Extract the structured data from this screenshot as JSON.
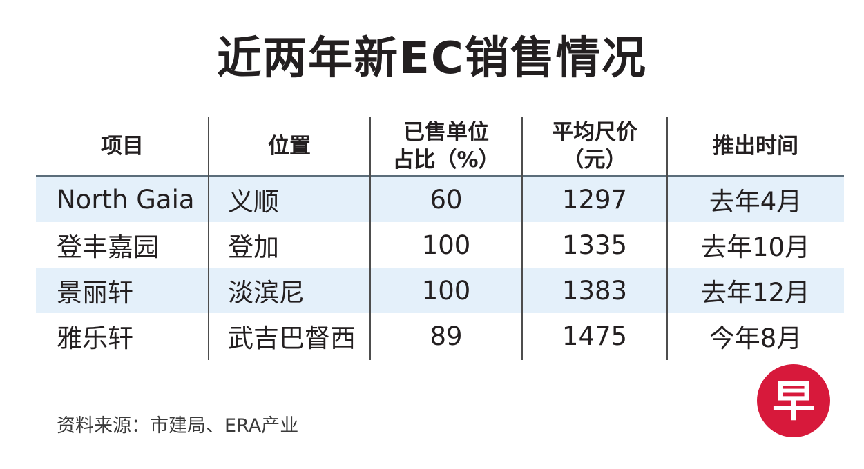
{
  "title": "近两年新EC销售情况",
  "chart_data": {
    "type": "table",
    "columns": [
      {
        "key": "project",
        "lines": [
          "项目"
        ]
      },
      {
        "key": "location",
        "lines": [
          "位置"
        ]
      },
      {
        "key": "sold_pct",
        "lines": [
          "已售单位",
          "占比（%）"
        ]
      },
      {
        "key": "avg_psf",
        "lines": [
          "平均尺价",
          "（元）"
        ]
      },
      {
        "key": "launch",
        "lines": [
          "推出时间"
        ]
      }
    ],
    "rows": [
      {
        "project": "North Gaia",
        "location": "义顺",
        "sold_pct": "60",
        "avg_psf": "1297",
        "launch": "去年4月"
      },
      {
        "project": "登丰嘉园",
        "location": "登加",
        "sold_pct": "100",
        "avg_psf": "1335",
        "launch": "去年10月"
      },
      {
        "project": "景丽轩",
        "location": "淡滨尼",
        "sold_pct": "100",
        "avg_psf": "1383",
        "launch": "去年12月"
      },
      {
        "project": "雅乐轩",
        "location": "武吉巴督西",
        "sold_pct": "89",
        "avg_psf": "1475",
        "launch": "今年8月"
      }
    ]
  },
  "source": "资料来源：市建局、ERA产业",
  "logo": {
    "char": "早",
    "icon": "zaobao-logo-icon",
    "color": "#d7193b"
  },
  "colors": {
    "row_shade": "#e4f0fa",
    "text": "#231f20",
    "rule": "#5b6d7a"
  }
}
